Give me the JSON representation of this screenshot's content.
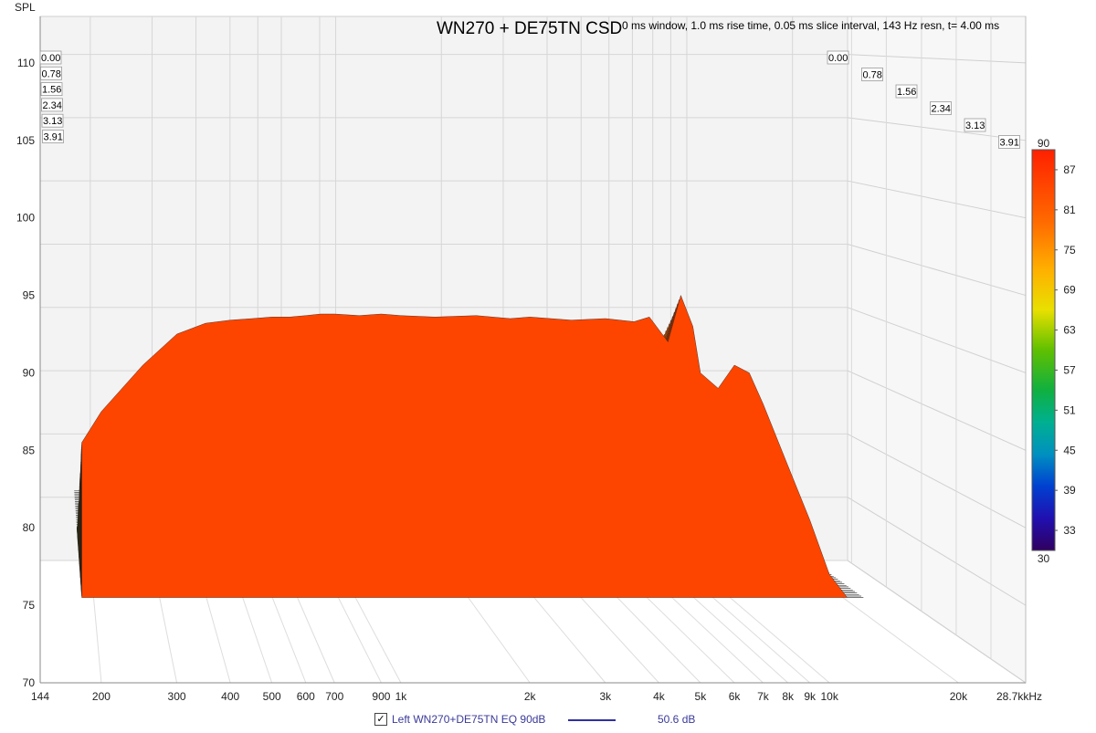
{
  "chart_data": {
    "type": "waterfall",
    "title": "WN270 + DE75TN CSD",
    "subtitle": "0 ms window, 1.0 ms rise time, 0.05 ms slice interval, 143 Hz resn, t= 4.00 ms",
    "ylabel": "SPL",
    "xunit": "kHz",
    "ylim": [
      70,
      113
    ],
    "xlim": [
      144,
      28700
    ],
    "y_ticks": [
      70,
      75,
      80,
      85,
      90,
      95,
      100,
      105,
      110
    ],
    "x_ticks": [
      {
        "label": "144",
        "value": 144
      },
      {
        "label": "200",
        "value": 200
      },
      {
        "label": "300",
        "value": 300
      },
      {
        "label": "400",
        "value": 400
      },
      {
        "label": "500",
        "value": 500
      },
      {
        "label": "600",
        "value": 600
      },
      {
        "label": "700",
        "value": 700
      },
      {
        "label": "900",
        "value": 900
      },
      {
        "label": "1k",
        "value": 1000
      },
      {
        "label": "2k",
        "value": 2000
      },
      {
        "label": "3k",
        "value": 3000
      },
      {
        "label": "4k",
        "value": 4000
      },
      {
        "label": "5k",
        "value": 5000
      },
      {
        "label": "6k",
        "value": 6000
      },
      {
        "label": "7k",
        "value": 7000
      },
      {
        "label": "8k",
        "value": 8000
      },
      {
        "label": "9k",
        "value": 9000
      },
      {
        "label": "10k",
        "value": 10000
      },
      {
        "label": "20k",
        "value": 20000
      },
      {
        "label": "28.7k",
        "value": 28700
      }
    ],
    "time_ticks": [
      "0.00",
      "0.78",
      "1.56",
      "2.34",
      "3.13",
      "3.91"
    ],
    "time_values": [
      0.0,
      0.78,
      1.56,
      2.34,
      3.13,
      3.91
    ],
    "t_max": 4.0,
    "colorbar": {
      "min": 30,
      "max": 90,
      "ticks": [
        "90",
        "87",
        "81",
        "75",
        "69",
        "63",
        "57",
        "51",
        "45",
        "39",
        "33",
        "30"
      ],
      "tick_values": [
        90,
        87,
        81,
        75,
        69,
        63,
        57,
        51,
        45,
        39,
        33,
        30
      ]
    },
    "series": [
      {
        "legend": "Left WN270+DE75TN EQ 90dB",
        "color": "#3030a0",
        "x_hz": [
          180,
          200,
          250,
          300,
          350,
          400,
          450,
          500,
          550,
          600,
          650,
          700,
          800,
          900,
          1000,
          1200,
          1500,
          1800,
          2000,
          2500,
          3000,
          3500,
          3800,
          4200,
          4500,
          4800,
          5000,
          5500,
          6000,
          6500,
          7000,
          8000,
          9000,
          10000,
          11000,
          12000
        ],
        "spl_db_t0": [
          85.5,
          87.5,
          90.5,
          92.5,
          93.2,
          93.4,
          93.5,
          93.6,
          93.6,
          93.7,
          93.8,
          93.8,
          93.7,
          93.8,
          93.7,
          93.6,
          93.7,
          93.5,
          93.6,
          93.4,
          93.5,
          93.3,
          93.6,
          92.0,
          95.0,
          93.0,
          90.0,
          89.0,
          90.5,
          90.0,
          88.0,
          84.0,
          80.5,
          77.0,
          74.5,
          71.0
        ],
        "floor_db": 75.5
      }
    ]
  },
  "legend": {
    "checkbox": "✓",
    "name": "Left WN270+DE75TN EQ 90dB",
    "value": "50.6 dB",
    "line_color": "#3030a0"
  }
}
